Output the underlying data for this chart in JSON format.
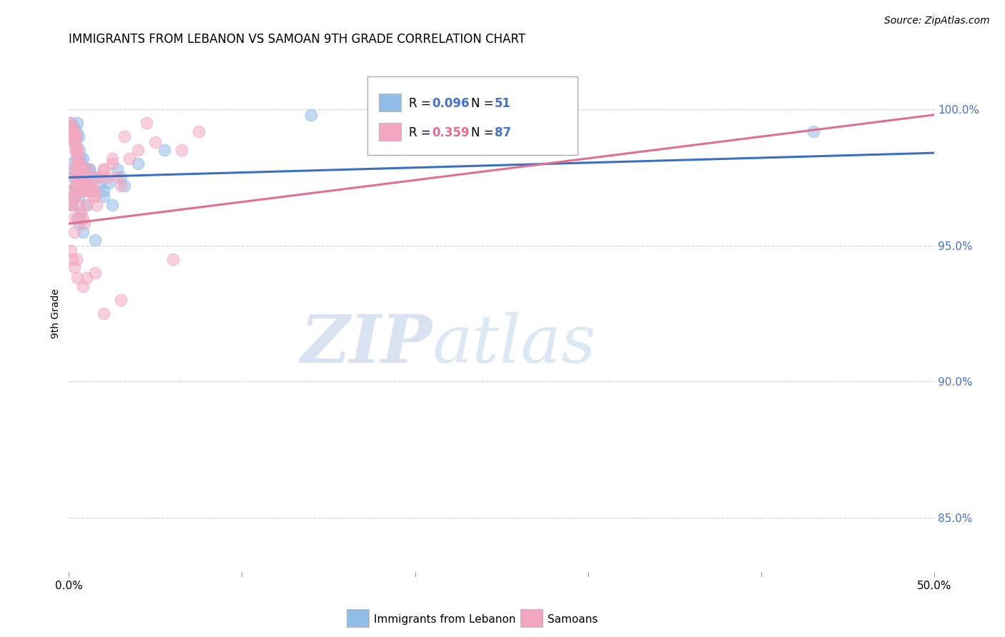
{
  "title": "IMMIGRANTS FROM LEBANON VS SAMOAN 9TH GRADE CORRELATION CHART",
  "source": "Source: ZipAtlas.com",
  "ylabel": "9th Grade",
  "yticks": [
    85.0,
    90.0,
    95.0,
    100.0
  ],
  "ytick_labels": [
    "85.0%",
    "90.0%",
    "95.0%",
    "100.0%"
  ],
  "xlim": [
    0.0,
    50.0
  ],
  "ylim": [
    83.0,
    102.0
  ],
  "blue_R": 0.096,
  "blue_N": 51,
  "pink_R": 0.359,
  "pink_N": 87,
  "blue_color": "#92BDE8",
  "pink_color": "#F4A8C0",
  "blue_line_color": "#3A6FC4",
  "pink_line_color": "#E07090",
  "watermark_zip": "ZIP",
  "watermark_atlas": "atlas",
  "blue_x": [
    0.1,
    0.15,
    0.2,
    0.25,
    0.3,
    0.35,
    0.4,
    0.45,
    0.5,
    0.55,
    0.6,
    0.65,
    0.7,
    0.75,
    0.8,
    0.85,
    0.9,
    0.95,
    1.0,
    1.1,
    1.2,
    1.3,
    1.5,
    1.8,
    2.0,
    2.3,
    2.8,
    3.2,
    4.0,
    5.5,
    0.1,
    0.2,
    0.3,
    0.4,
    0.5,
    0.6,
    0.7,
    0.8,
    1.0,
    1.2,
    1.5,
    2.0,
    2.5,
    3.0,
    0.15,
    0.25,
    0.35,
    0.45,
    0.55,
    14.0,
    43.0
  ],
  "blue_y": [
    99.5,
    99.3,
    99.2,
    99.4,
    99.1,
    98.8,
    99.0,
    99.2,
    99.5,
    99.0,
    98.5,
    98.2,
    98.0,
    97.8,
    98.2,
    97.5,
    97.2,
    97.8,
    97.5,
    97.2,
    97.8,
    97.0,
    97.5,
    97.2,
    97.0,
    97.3,
    97.8,
    97.2,
    98.0,
    98.5,
    97.0,
    96.5,
    96.8,
    97.2,
    96.0,
    95.8,
    96.2,
    95.5,
    96.5,
    97.8,
    95.2,
    96.8,
    96.5,
    97.5,
    98.0,
    97.5,
    97.8,
    98.2,
    96.8,
    99.8,
    99.2
  ],
  "pink_x": [
    0.05,
    0.1,
    0.15,
    0.18,
    0.2,
    0.22,
    0.25,
    0.28,
    0.3,
    0.32,
    0.35,
    0.38,
    0.4,
    0.42,
    0.45,
    0.48,
    0.5,
    0.52,
    0.55,
    0.6,
    0.65,
    0.7,
    0.75,
    0.8,
    0.85,
    0.9,
    0.95,
    1.0,
    1.1,
    1.2,
    1.3,
    1.4,
    1.5,
    1.6,
    1.8,
    2.0,
    2.2,
    2.5,
    2.8,
    3.0,
    3.5,
    4.0,
    5.0,
    6.5,
    7.5,
    0.1,
    0.2,
    0.3,
    0.4,
    0.5,
    0.6,
    0.7,
    0.8,
    0.9,
    1.0,
    1.2,
    1.5,
    0.15,
    0.25,
    0.35,
    0.45,
    0.55,
    0.65,
    0.75,
    0.85,
    0.95,
    1.1,
    1.3,
    1.6,
    2.0,
    2.5,
    3.2,
    4.5,
    0.1,
    0.2,
    0.3,
    0.5,
    0.8,
    1.0,
    1.5,
    2.0,
    3.0,
    6.0,
    0.12,
    0.22,
    0.32,
    0.42
  ],
  "pink_y": [
    99.5,
    99.3,
    99.2,
    99.4,
    99.2,
    99.0,
    99.1,
    98.8,
    99.0,
    99.2,
    98.5,
    98.7,
    99.0,
    98.5,
    98.3,
    98.0,
    98.5,
    98.2,
    97.8,
    97.5,
    98.0,
    97.5,
    97.8,
    97.2,
    97.0,
    97.5,
    97.0,
    97.2,
    97.5,
    97.0,
    97.2,
    96.8,
    97.0,
    96.5,
    97.5,
    97.8,
    97.5,
    98.0,
    97.5,
    97.2,
    98.2,
    98.5,
    98.8,
    98.5,
    99.2,
    97.8,
    96.5,
    96.8,
    97.2,
    96.0,
    96.5,
    96.2,
    96.0,
    95.8,
    96.5,
    97.2,
    96.8,
    97.0,
    96.8,
    97.5,
    97.2,
    97.5,
    97.0,
    97.8,
    97.2,
    97.5,
    97.8,
    97.0,
    97.5,
    97.8,
    98.2,
    99.0,
    99.5,
    94.8,
    94.5,
    94.2,
    93.8,
    93.5,
    93.8,
    94.0,
    92.5,
    93.0,
    94.5,
    96.5,
    96.0,
    95.5,
    94.5
  ],
  "blue_trendline": [
    97.5,
    98.4
  ],
  "pink_trendline": [
    95.8,
    99.8
  ]
}
